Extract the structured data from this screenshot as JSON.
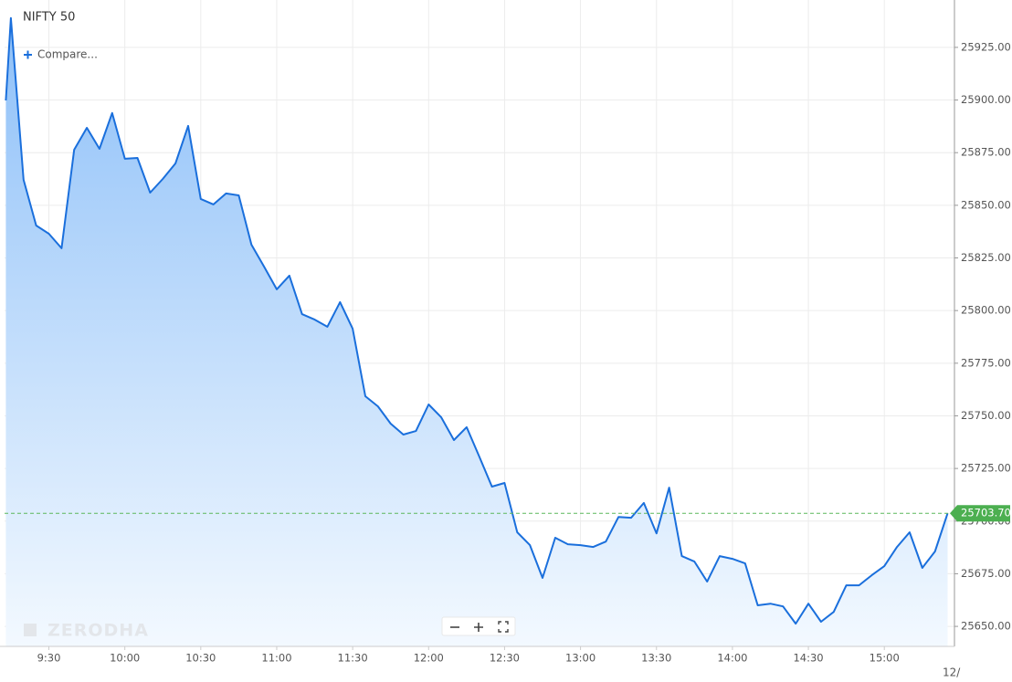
{
  "chart_data": {
    "type": "line",
    "title": "NIFTY 50",
    "compare_label": "Compare...",
    "watermark": "ZERODHA",
    "x": [
      553,
      555,
      560,
      565,
      570,
      575,
      580,
      585,
      590,
      595,
      600,
      605,
      610,
      615,
      620,
      625,
      630,
      635,
      640,
      645,
      650,
      655,
      660,
      665,
      670,
      675,
      680,
      685,
      690,
      695,
      700,
      705,
      710,
      715,
      720,
      725,
      730,
      735,
      740,
      745,
      750,
      755,
      760,
      765,
      770,
      775,
      780,
      785,
      790,
      795,
      800,
      805,
      810,
      815,
      820,
      825,
      830,
      835,
      840,
      845,
      850,
      855,
      860,
      865,
      870,
      875,
      880,
      885,
      890,
      895,
      900,
      905,
      910,
      915,
      920,
      925
    ],
    "series": [
      {
        "color": "#1a6fdc",
        "values": [
          25899.8,
          25938.9,
          25862.1,
          25840.4,
          25836.5,
          25829.6,
          25876.4,
          25886.8,
          25876.8,
          25893.8,
          25872.1,
          25872.5,
          25856.0,
          25862.5,
          25869.9,
          25887.7,
          25853.0,
          25850.4,
          25855.6,
          25854.7,
          25831.3,
          25820.9,
          25810.1,
          25816.6,
          25798.3,
          25795.7,
          25792.3,
          25804.0,
          25791.4,
          25759.3,
          25754.5,
          25746.3,
          25741.1,
          25742.8,
          25755.4,
          25749.3,
          25738.5,
          25744.6,
          25730.7,
          25716.4,
          25718.1,
          25694.7,
          25688.6,
          25673.0,
          25692.1,
          25689.0,
          25688.6,
          25687.7,
          25690.3,
          25702.0,
          25701.6,
          25708.6,
          25694.2,
          25715.9,
          25683.4,
          25680.8,
          25671.3,
          25683.4,
          25682.1,
          25679.9,
          25660.0,
          25660.8,
          25659.5,
          25651.3,
          25660.8,
          25652.2,
          25656.9,
          25669.5,
          25669.5,
          25674.3,
          25678.6,
          25687.7,
          25694.7,
          25677.8,
          25685.6,
          25703.7
        ]
      }
    ],
    "xlim": [
      552.5,
      927.7
    ],
    "xticks": [
      {
        "value": 570,
        "label": "9:30"
      },
      {
        "value": 600,
        "label": "10:00"
      },
      {
        "value": 630,
        "label": "10:30"
      },
      {
        "value": 660,
        "label": "11:00"
      },
      {
        "value": 690,
        "label": "11:30"
      },
      {
        "value": 720,
        "label": "12:00"
      },
      {
        "value": 750,
        "label": "12:30"
      },
      {
        "value": 780,
        "label": "13:00"
      },
      {
        "value": 810,
        "label": "13:30"
      },
      {
        "value": 840,
        "label": "14:00"
      },
      {
        "value": 870,
        "label": "14:30"
      },
      {
        "value": 900,
        "label": "15:00"
      }
    ],
    "ylim": [
      25640.5,
      25947.5
    ],
    "yticks": [
      {
        "value": 25650,
        "label": "25650.00"
      },
      {
        "value": 25675,
        "label": "25675.00"
      },
      {
        "value": 25700,
        "label": "25700.00"
      },
      {
        "value": 25725,
        "label": "25725.00"
      },
      {
        "value": 25750,
        "label": "25750.00"
      },
      {
        "value": 25775,
        "label": "25775.00"
      },
      {
        "value": 25800,
        "label": "25800.00"
      },
      {
        "value": 25825,
        "label": "25825.00"
      },
      {
        "value": 25850,
        "label": "25850.00"
      },
      {
        "value": 25875,
        "label": "25875.00"
      },
      {
        "value": 25900,
        "label": "25900.00"
      },
      {
        "value": 25925,
        "label": "25925.00"
      }
    ],
    "grid": true,
    "last_price": {
      "value": 25703.7,
      "label": "25703.70"
    },
    "x_edge_label": "12/"
  }
}
